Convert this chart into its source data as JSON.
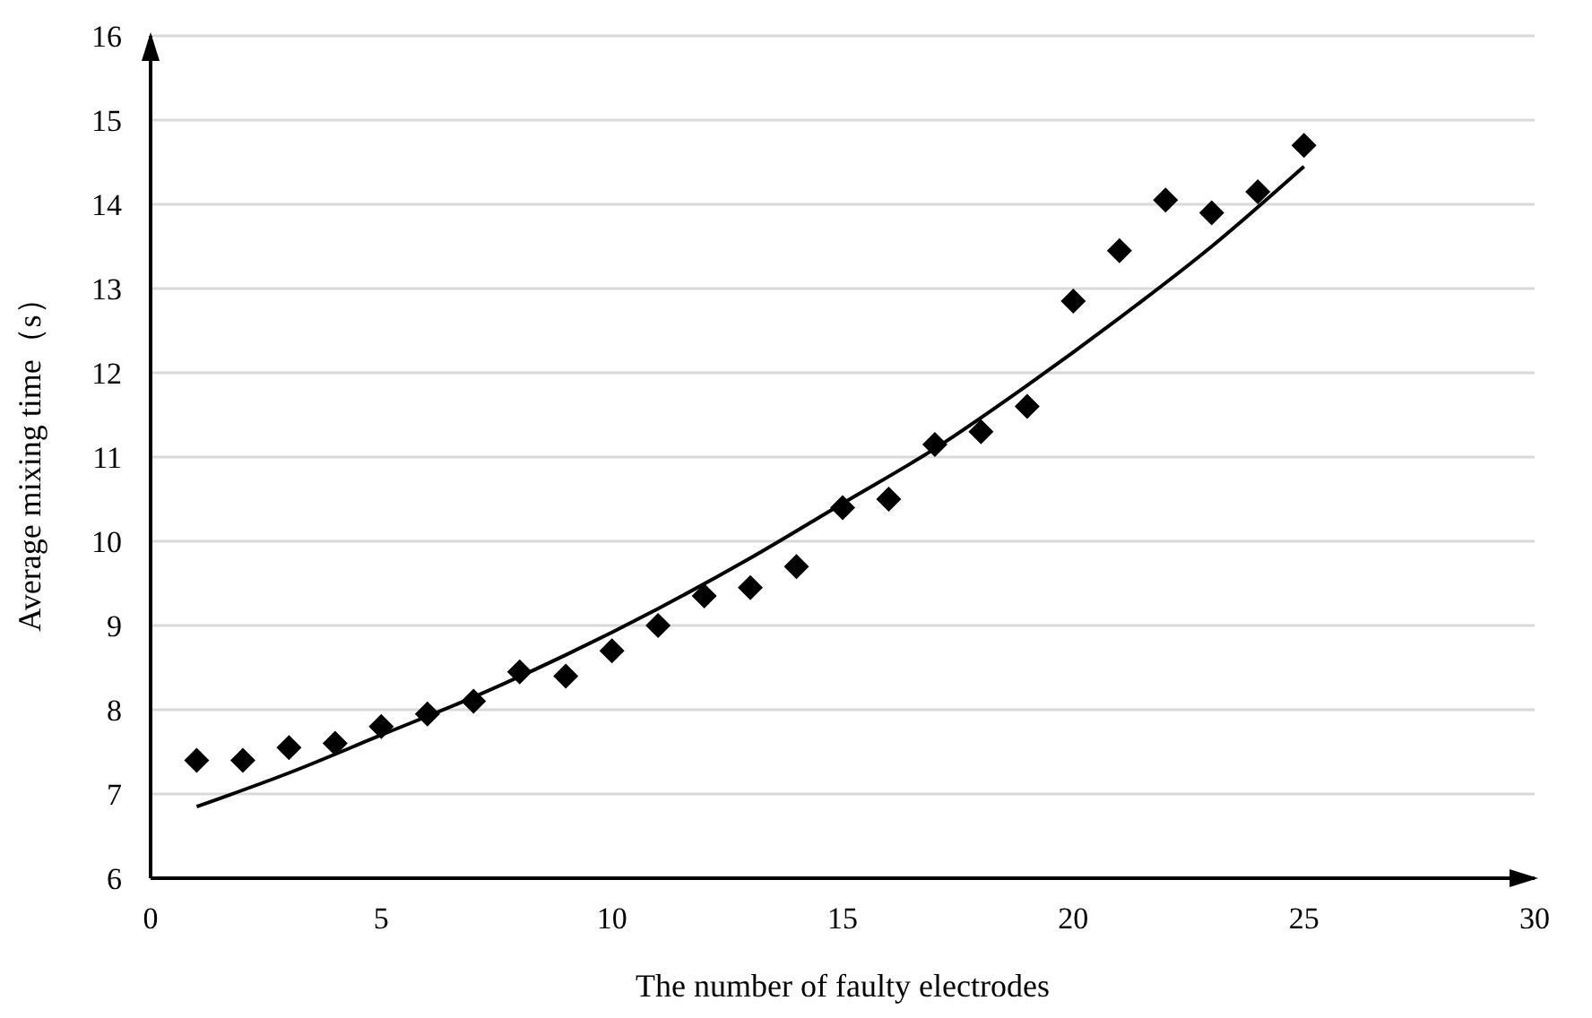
{
  "chart_data": {
    "type": "scatter",
    "xlabel": "The number of faulty electrodes",
    "ylabel": "Average mixing time（s）",
    "xlim": [
      0,
      30
    ],
    "xticks": [
      0,
      5,
      10,
      15,
      20,
      25,
      30
    ],
    "ylim": [
      6,
      16
    ],
    "yticks": [
      6,
      7,
      8,
      9,
      10,
      11,
      12,
      13,
      14,
      15,
      16
    ],
    "grid": "y",
    "legend": false,
    "series": [
      {
        "marker": "diamond",
        "color": "#000000",
        "x": [
          1,
          2,
          3,
          4,
          5,
          6,
          7,
          8,
          9,
          10,
          11,
          12,
          13,
          14,
          15,
          16,
          17,
          18,
          19,
          20,
          21,
          22,
          23,
          24,
          25
        ],
        "values": [
          7.4,
          7.4,
          7.55,
          7.6,
          7.8,
          7.95,
          8.1,
          8.45,
          8.4,
          8.7,
          9.0,
          9.35,
          9.45,
          9.7,
          10.4,
          10.5,
          11.15,
          11.3,
          11.6,
          12.85,
          13.45,
          14.05,
          13.9,
          14.15,
          14.7
        ]
      },
      {
        "type": "line",
        "marker": "none",
        "line_style": "solid",
        "color": "#000000",
        "x": [
          1,
          3,
          5,
          7,
          9,
          11,
          13,
          15,
          17,
          19,
          21,
          23,
          25
        ],
        "values": [
          6.85,
          7.25,
          7.7,
          8.15,
          8.65,
          9.2,
          9.8,
          10.45,
          11.1,
          11.85,
          12.65,
          13.5,
          14.45
        ]
      }
    ]
  }
}
